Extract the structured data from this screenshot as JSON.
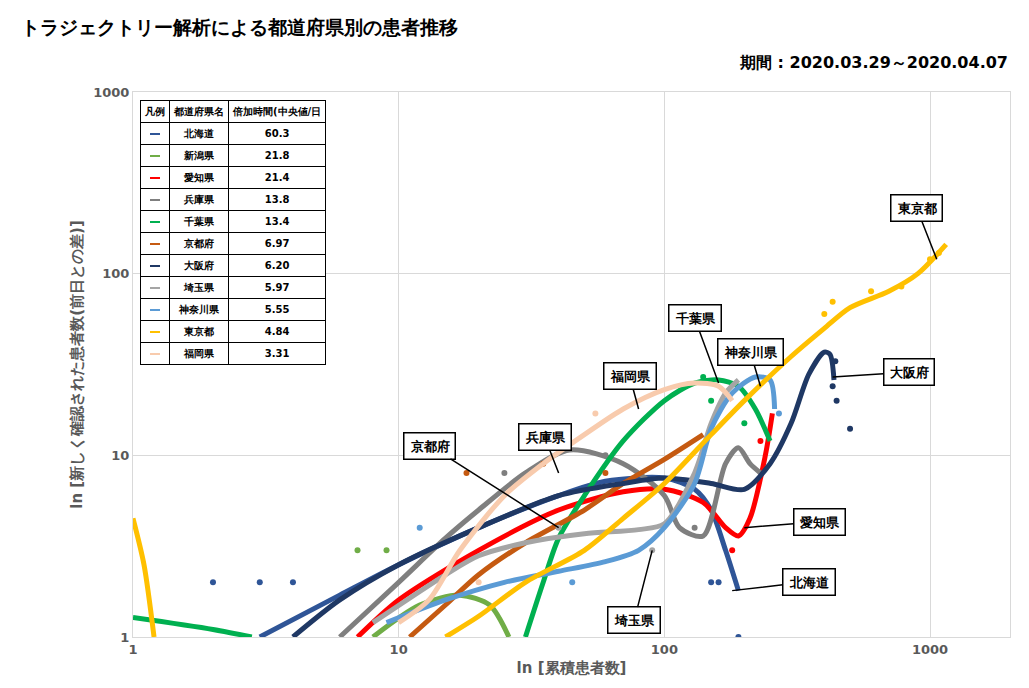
{
  "chart_data": {
    "type": "line",
    "title": "トラジェクトリー解析による都道府県別の患者推移",
    "subtitle": "期間 : 2020.03.29～2020.04.07",
    "x_label": "ln [累積患者数]",
    "y_label": "ln [新しく確認された患者数(前日との差)]",
    "log": true,
    "grid": true,
    "legend": "top left",
    "xlim": [
      1,
      2000
    ],
    "ylim": [
      1,
      1000
    ],
    "xticks": [
      1,
      10,
      100,
      1000
    ],
    "yticks": [
      1,
      10,
      100,
      1000
    ],
    "legend_headers": [
      "凡例",
      "都道府県名",
      "倍加時間(中央値/日"
    ],
    "series": [
      {
        "name": "北海道",
        "color": "#2F5597",
        "doubling_time": "60.3",
        "x": [
          3,
          6,
          10,
          20,
          40,
          60,
          100,
          130,
          150,
          170,
          190
        ],
        "values": [
          1,
          1.7,
          2.5,
          4,
          6,
          7.2,
          7.5,
          6.5,
          5,
          3,
          1.8
        ],
        "dots_x": [
          2,
          3,
          4,
          150,
          160,
          190
        ],
        "dots_y": [
          2,
          2,
          2,
          2,
          2,
          1
        ]
      },
      {
        "name": "新潟県",
        "color": "#70AD47",
        "doubling_time": "21.8",
        "x": [
          8,
          12,
          17,
          22,
          26
        ],
        "values": [
          1,
          1.5,
          1.7,
          1.5,
          1
        ],
        "dots_x": [
          7,
          9
        ],
        "dots_y": [
          3,
          3
        ]
      },
      {
        "name": "愛知県",
        "color": "#FF0000",
        "doubling_time": "21.4",
        "x": [
          7,
          10,
          20,
          40,
          70,
          100,
          140,
          170,
          190,
          210,
          240,
          255
        ],
        "values": [
          1,
          1.6,
          3,
          5,
          6.3,
          6.5,
          5.5,
          4,
          3.6,
          4.5,
          10,
          17
        ],
        "dots_x": [
          120,
          180,
          230
        ],
        "dots_y": [
          6,
          3,
          12
        ]
      },
      {
        "name": "兵庫県",
        "color": "#7F7F7F",
        "doubling_time": "13.8",
        "x": [
          6,
          10,
          15,
          20,
          30,
          44,
          70,
          100,
          114,
          140,
          170,
          190,
          210,
          230
        ],
        "values": [
          1,
          2,
          3.5,
          5,
          8,
          10.7,
          9,
          6,
          4,
          3.6,
          9,
          11,
          9,
          8
        ],
        "dots_x": [
          25,
          60,
          130
        ],
        "dots_y": [
          8,
          10,
          4
        ]
      },
      {
        "name": "千葉県",
        "color": "#00B050",
        "doubling_time": "13.4",
        "x": [
          1,
          2,
          2.8,
          null,
          30,
          35,
          40,
          50,
          70,
          100,
          130,
          160,
          190,
          220,
          250
        ],
        "values": [
          1.28,
          1.1,
          1,
          null,
          1,
          2,
          3.5,
          6,
          12,
          20,
          25,
          26,
          24,
          18,
          12
        ],
        "dots_x": [
          140,
          150,
          200
        ],
        "dots_y": [
          27,
          20,
          15
        ]
      },
      {
        "name": "京都府",
        "color": "#C55A11",
        "doubling_time": "6.97",
        "x": [
          11,
          15,
          20,
          30,
          50,
          70,
          100,
          140
        ],
        "values": [
          1,
          1.5,
          2.2,
          3.3,
          5,
          7,
          9.5,
          13
        ],
        "dots_x": [
          18,
          35,
          60
        ],
        "dots_y": [
          8,
          9,
          8
        ]
      },
      {
        "name": "大阪府",
        "color": "#1F3864",
        "doubling_time": "6.20",
        "x": [
          4,
          6,
          10,
          20,
          40,
          70,
          100,
          150,
          200,
          250,
          300,
          350,
          400,
          420,
          435
        ],
        "values": [
          1,
          1.6,
          2.5,
          4,
          6,
          7,
          7.5,
          7,
          6.5,
          9,
          15,
          28,
          37,
          36,
          26
        ],
        "dots_x": [
          430,
          440,
          445,
          500
        ],
        "dots_y": [
          24,
          33,
          20,
          14
        ]
      },
      {
        "name": "埼玉県",
        "color": "#A5A5A5",
        "doubling_time": "5.97",
        "x": [
          8,
          15,
          20,
          30,
          50,
          80,
          100,
          130,
          150,
          170,
          190
        ],
        "values": [
          1.2,
          2.2,
          2.8,
          3.3,
          3.7,
          3.9,
          4.2,
          8,
          15,
          22,
          26
        ],
        "dots_x": [
          40,
          90
        ],
        "dots_y": [
          4,
          3
        ]
      },
      {
        "name": "神奈川県",
        "color": "#5B9BD5",
        "doubling_time": "5.55",
        "x": [
          9,
          15,
          25,
          40,
          60,
          80,
          100,
          130,
          150,
          180,
          220,
          250,
          260
        ],
        "values": [
          1.2,
          1.6,
          2,
          2.3,
          2.6,
          3,
          4,
          7,
          14,
          22,
          27,
          26,
          18
        ],
        "dots_x": [
          12,
          45,
          270
        ],
        "dots_y": [
          4,
          2,
          17
        ]
      },
      {
        "name": "東京都",
        "color": "#FFC000",
        "doubling_time": "4.84",
        "x": [
          1,
          1.1,
          1.2,
          null,
          15,
          20,
          30,
          50,
          70,
          100,
          150,
          200,
          300,
          400,
          500,
          700,
          900,
          1150
        ],
        "values": [
          4.5,
          2.5,
          1,
          null,
          1,
          1.3,
          2,
          3,
          4.5,
          7,
          13,
          20,
          35,
          50,
          65,
          80,
          100,
          145
        ],
        "dots_x": [
          400,
          430,
          600,
          780,
          1000,
          1080
        ],
        "dots_y": [
          60,
          70,
          80,
          85,
          120,
          130
        ]
      },
      {
        "name": "福岡県",
        "color": "#F8CBAD",
        "doubling_time": "3.31",
        "x": [
          10,
          13,
          17,
          25,
          35,
          50,
          70,
          100,
          130,
          160,
          180
        ],
        "values": [
          1.2,
          1.6,
          3,
          6,
          9,
          13,
          18,
          23,
          25,
          24,
          20
        ],
        "dots_x": [
          20,
          55
        ],
        "dots_y": [
          2,
          17
        ]
      }
    ],
    "annotations": [
      {
        "text": "東京都",
        "x": 1060,
        "y": 120
      },
      {
        "text": "大阪府",
        "x": 430,
        "y": 27
      },
      {
        "text": "神奈川県",
        "x": 230,
        "y": 24
      },
      {
        "text": "千葉県",
        "x": 160,
        "y": 25
      },
      {
        "text": "福岡県",
        "x": 80,
        "y": 18
      },
      {
        "text": "兵庫県",
        "x": 40,
        "y": 8
      },
      {
        "text": "京都府",
        "x": 40,
        "y": 4
      },
      {
        "text": "愛知県",
        "x": 200,
        "y": 4
      },
      {
        "text": "北海道",
        "x": 180,
        "y": 1.8
      },
      {
        "text": "埼玉県",
        "x": 90,
        "y": 3
      }
    ]
  }
}
